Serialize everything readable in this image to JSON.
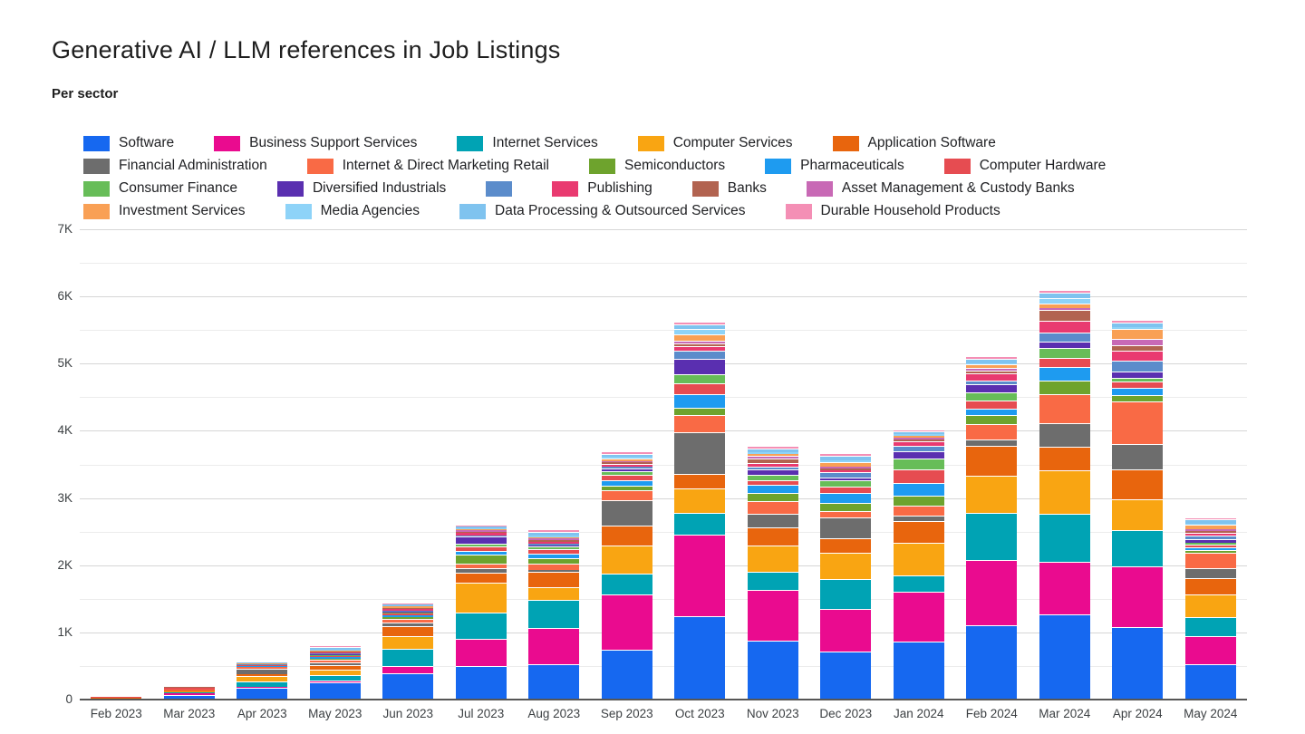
{
  "header": {
    "title": "Generative AI / LLM references in Job Listings",
    "subtitle": "Per sector"
  },
  "chart_data": {
    "type": "bar",
    "stacked": true,
    "title": "Generative AI / LLM references in Job Listings",
    "subtitle": "Per sector",
    "xlabel": "",
    "ylabel": "",
    "ylim": [
      0,
      7000
    ],
    "grid": true,
    "legend_position": "top",
    "yticks": [
      "0",
      "1K",
      "2K",
      "3K",
      "4K",
      "5K",
      "6K",
      "7K"
    ],
    "categories": [
      "Feb 2023",
      "Mar 2023",
      "Apr 2023",
      "May 2023",
      "Jun 2023",
      "Jul 2023",
      "Aug 2023",
      "Sep 2023",
      "Oct 2023",
      "Nov 2023",
      "Dec 2023",
      "Jan 2024",
      "Feb 2024",
      "Mar 2024",
      "Apr 2024",
      "May 2024"
    ],
    "series": [
      {
        "name": "Software",
        "color": "#1668f0",
        "values": [
          10,
          70,
          180,
          250,
          390,
          500,
          530,
          740,
          1240,
          880,
          720,
          860,
          1100,
          1270,
          1080,
          520
        ]
      },
      {
        "name": "Business Support Services",
        "color": "#ea0b8f",
        "values": [
          5,
          20,
          15,
          40,
          110,
          410,
          530,
          830,
          1220,
          750,
          630,
          740,
          980,
          780,
          900,
          420
        ]
      },
      {
        "name": "Internet Services",
        "color": "#00a3b4",
        "values": [
          2,
          15,
          80,
          70,
          250,
          390,
          430,
          310,
          320,
          270,
          450,
          250,
          700,
          720,
          540,
          290
        ]
      },
      {
        "name": "Computer Services",
        "color": "#f9a512",
        "values": [
          3,
          15,
          75,
          90,
          190,
          440,
          180,
          420,
          360,
          400,
          390,
          480,
          550,
          640,
          460,
          330
        ]
      },
      {
        "name": "Application Software",
        "color": "#e8650d",
        "values": [
          2,
          10,
          30,
          60,
          150,
          150,
          230,
          290,
          220,
          260,
          210,
          330,
          450,
          350,
          450,
          250
        ]
      },
      {
        "name": "Financial Administration",
        "color": "#6d6d6d",
        "values": [
          1,
          5,
          80,
          40,
          55,
          60,
          30,
          380,
          620,
          200,
          310,
          80,
          90,
          350,
          380,
          150
        ]
      },
      {
        "name": "Internet & Direct Marketing Retail",
        "color": "#f96a45",
        "values": [
          2,
          10,
          25,
          40,
          60,
          80,
          90,
          150,
          250,
          200,
          90,
          150,
          230,
          430,
          630,
          230
        ]
      },
      {
        "name": "Semiconductors",
        "color": "#6ea32d",
        "values": [
          1,
          5,
          5,
          15,
          20,
          130,
          90,
          60,
          120,
          120,
          130,
          140,
          130,
          210,
          90,
          40
        ]
      },
      {
        "name": "Pharmaceuticals",
        "color": "#1e9bf0",
        "values": [
          1,
          5,
          10,
          30,
          30,
          60,
          60,
          90,
          190,
          120,
          150,
          190,
          100,
          200,
          110,
          40
        ]
      },
      {
        "name": "Computer Hardware",
        "color": "#e64c51",
        "values": [
          15,
          20,
          10,
          15,
          25,
          60,
          70,
          80,
          170,
          60,
          90,
          210,
          120,
          135,
          90,
          40
        ]
      },
      {
        "name": "Consumer Finance",
        "color": "#67bd58",
        "values": [
          1,
          2,
          5,
          10,
          15,
          40,
          40,
          50,
          140,
          80,
          90,
          160,
          130,
          150,
          60,
          30
        ]
      },
      {
        "name": "Diversified Industrials",
        "color": "#5a2fb0",
        "values": [
          1,
          2,
          5,
          15,
          20,
          110,
          20,
          40,
          220,
          90,
          40,
          110,
          110,
          95,
          100,
          50
        ]
      },
      {
        "name": "",
        "color": "#5b8ccb",
        "values": [
          0,
          2,
          5,
          10,
          15,
          20,
          20,
          30,
          130,
          40,
          90,
          80,
          60,
          135,
          150,
          50
        ]
      },
      {
        "name": "Publishing",
        "color": "#e93a70",
        "values": [
          1,
          2,
          3,
          15,
          20,
          30,
          30,
          40,
          60,
          50,
          30,
          70,
          110,
          175,
          150,
          50
        ]
      },
      {
        "name": "Banks",
        "color": "#b26350",
        "values": [
          1,
          2,
          3,
          10,
          10,
          20,
          30,
          20,
          40,
          70,
          20,
          20,
          40,
          160,
          90,
          20
        ]
      },
      {
        "name": "Asset Management & Custody Banks",
        "color": "#c869b5",
        "values": [
          0,
          1,
          2,
          10,
          10,
          20,
          20,
          20,
          40,
          40,
          30,
          30,
          40,
          30,
          90,
          30
        ]
      },
      {
        "name": "Investment Services",
        "color": "#f9a055",
        "values": [
          1,
          2,
          5,
          15,
          15,
          20,
          20,
          40,
          100,
          30,
          60,
          30,
          50,
          65,
          150,
          60
        ]
      },
      {
        "name": "Media Agencies",
        "color": "#8ed3f8",
        "values": [
          0,
          1,
          2,
          10,
          10,
          10,
          20,
          30,
          80,
          20,
          30,
          20,
          20,
          80,
          30,
          20
        ]
      },
      {
        "name": "Data Processing & Outsourced Services",
        "color": "#7fc3ef",
        "values": [
          1,
          1,
          10,
          40,
          25,
          30,
          60,
          40,
          70,
          60,
          70,
          40,
          60,
          80,
          60,
          60
        ]
      },
      {
        "name": "Durable Household Products",
        "color": "#f48fb5",
        "values": [
          0,
          0,
          5,
          15,
          10,
          10,
          20,
          20,
          30,
          30,
          30,
          20,
          30,
          30,
          30,
          20
        ]
      }
    ]
  }
}
